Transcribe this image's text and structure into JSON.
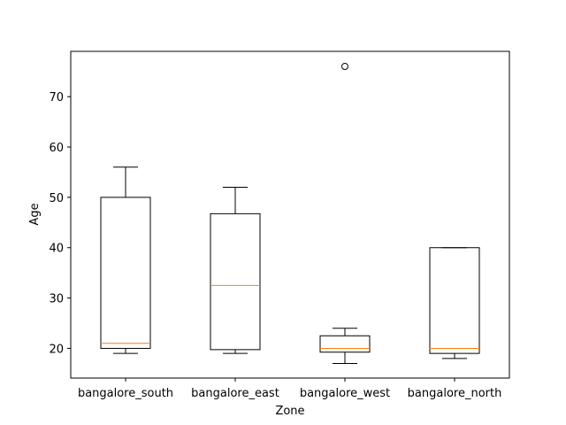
{
  "chart_data": {
    "type": "box",
    "title": "",
    "xlabel": "Zone",
    "ylabel": "Age",
    "ylim": [
      14.1,
      79.0
    ],
    "yticks": [
      20,
      30,
      40,
      50,
      60,
      70
    ],
    "grid": false,
    "categories": [
      "bangalore_south",
      "bangalore_east",
      "bangalore_west",
      "bangalore_north"
    ],
    "boxes": [
      {
        "category": "bangalore_south",
        "whisker_low": 19,
        "q1": 20,
        "median": 21,
        "q3": 50,
        "whisker_high": 56,
        "outliers": []
      },
      {
        "category": "bangalore_east",
        "whisker_low": 19,
        "q1": 19.75,
        "median": 32.5,
        "q3": 46.75,
        "whisker_high": 52,
        "outliers": []
      },
      {
        "category": "bangalore_west",
        "whisker_low": 17,
        "q1": 19.25,
        "median": 20,
        "q3": 22.5,
        "whisker_high": 24,
        "outliers": [
          76
        ]
      },
      {
        "category": "bangalore_north",
        "whisker_low": 18,
        "q1": 19,
        "median": 20,
        "q3": 40,
        "whisker_high": 40,
        "outliers": []
      }
    ],
    "colors": {
      "box": "#000000",
      "median": "#ff7f0e",
      "outlier": "#000000"
    }
  }
}
